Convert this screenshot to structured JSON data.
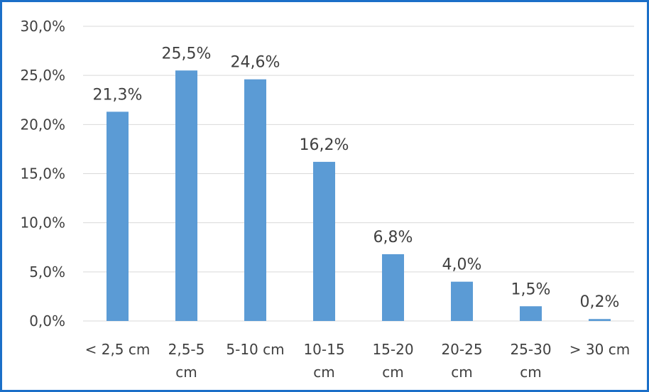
{
  "chart_data": {
    "type": "bar",
    "categories": [
      [
        "< 2,5 cm"
      ],
      [
        "2,5-5",
        "cm"
      ],
      [
        "5-10 cm"
      ],
      [
        "10-15",
        "cm"
      ],
      [
        "15-20",
        "cm"
      ],
      [
        "20-25",
        "cm"
      ],
      [
        "25-30",
        "cm"
      ],
      [
        "> 30 cm"
      ]
    ],
    "values": [
      21.3,
      25.5,
      24.6,
      16.2,
      6.8,
      4.0,
      1.5,
      0.2
    ],
    "data_labels": [
      "21,3%",
      "25,5%",
      "24,6%",
      "16,2%",
      "6,8%",
      "4,0%",
      "1,5%",
      "0,2%"
    ],
    "y_ticks": [
      0,
      5,
      10,
      15,
      20,
      25,
      30
    ],
    "y_tick_labels": [
      "0,0%",
      "5,0%",
      "10,0%",
      "15,0%",
      "20,0%",
      "25,0%",
      "30,0%"
    ],
    "ylim": [
      0,
      30
    ],
    "grid": true,
    "legend": "none",
    "bar_color": "#5b9bd5",
    "border_color": "#1b6fc8",
    "title": "",
    "xlabel": "",
    "ylabel": ""
  }
}
